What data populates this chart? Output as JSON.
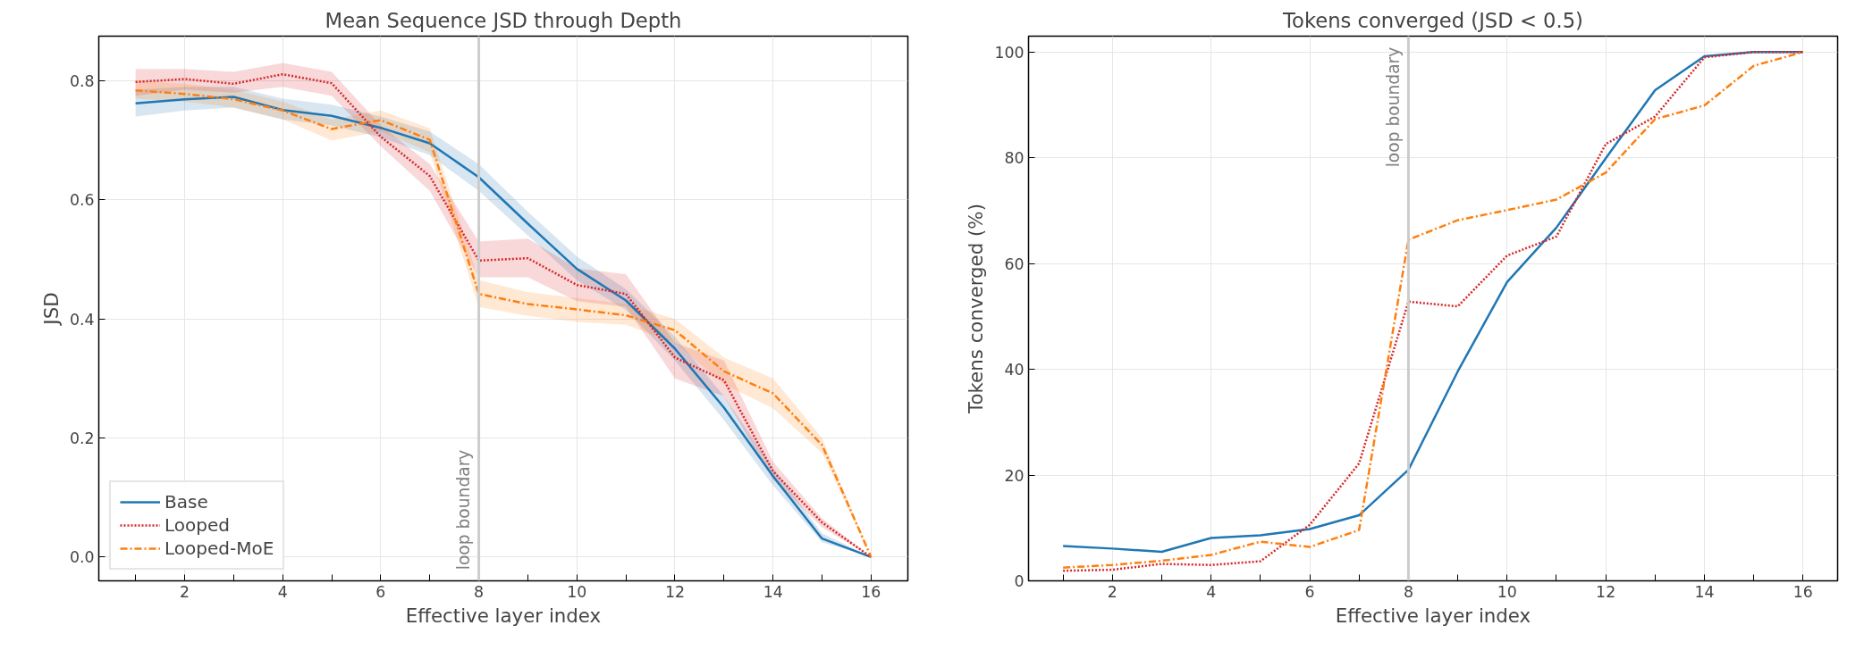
{
  "chart_data": [
    {
      "type": "line",
      "title": "Mean Sequence JSD through Depth",
      "xlabel": "Effective layer index",
      "ylabel": "JSD",
      "x": [
        1,
        2,
        3,
        4,
        5,
        6,
        7,
        8,
        9,
        10,
        11,
        12,
        13,
        14,
        15,
        16
      ],
      "series": [
        {
          "name": "Base",
          "color": "#1f77b4",
          "line_style": "solid",
          "values": [
            0.762,
            0.769,
            0.773,
            0.751,
            0.741,
            0.721,
            0.695,
            0.638,
            0.56,
            0.484,
            0.431,
            0.35,
            0.251,
            0.136,
            0.031,
            0.0
          ],
          "lower": [
            0.74,
            0.75,
            0.755,
            0.735,
            0.725,
            0.705,
            0.675,
            0.615,
            0.54,
            0.465,
            0.415,
            0.33,
            0.23,
            0.12,
            0.025,
            0.0
          ],
          "upper": [
            0.785,
            0.79,
            0.79,
            0.77,
            0.76,
            0.74,
            0.715,
            0.66,
            0.58,
            0.505,
            0.45,
            0.37,
            0.27,
            0.15,
            0.04,
            0.0
          ]
        },
        {
          "name": "Looped",
          "color": "#d62728",
          "line_style": "dotted",
          "values": [
            0.798,
            0.803,
            0.795,
            0.811,
            0.796,
            0.706,
            0.64,
            0.498,
            0.502,
            0.457,
            0.442,
            0.335,
            0.297,
            0.144,
            0.058,
            0.0
          ],
          "lower": [
            0.775,
            0.785,
            0.78,
            0.79,
            0.775,
            0.69,
            0.615,
            0.47,
            0.47,
            0.43,
            0.42,
            0.3,
            0.27,
            0.13,
            0.05,
            0.0
          ],
          "upper": [
            0.82,
            0.82,
            0.815,
            0.83,
            0.815,
            0.725,
            0.66,
            0.53,
            0.535,
            0.485,
            0.475,
            0.36,
            0.33,
            0.16,
            0.065,
            0.0
          ]
        },
        {
          "name": "Looped-MoE",
          "color": "#ff7f0e",
          "line_style": "dashdot",
          "values": [
            0.784,
            0.778,
            0.769,
            0.75,
            0.719,
            0.734,
            0.701,
            0.442,
            0.425,
            0.416,
            0.406,
            0.381,
            0.312,
            0.275,
            0.188,
            0.0
          ],
          "lower": [
            0.77,
            0.765,
            0.755,
            0.735,
            0.7,
            0.715,
            0.68,
            0.42,
            0.405,
            0.395,
            0.39,
            0.36,
            0.29,
            0.25,
            0.175,
            0.0
          ],
          "upper": [
            0.8,
            0.795,
            0.785,
            0.765,
            0.735,
            0.75,
            0.72,
            0.465,
            0.445,
            0.435,
            0.425,
            0.4,
            0.335,
            0.3,
            0.2,
            0.0
          ]
        }
      ],
      "xlim": [
        0.25,
        16.75
      ],
      "ylim": [
        -0.04,
        0.875
      ],
      "xticks": [
        {
          "value": 1,
          "label": null
        },
        2,
        {
          "value": 3,
          "label": null
        },
        4,
        {
          "value": 5,
          "label": null
        },
        6,
        {
          "value": 7,
          "label": null
        },
        8,
        {
          "value": 9,
          "label": null
        },
        10,
        {
          "value": 11,
          "label": null
        },
        12,
        {
          "value": 13,
          "label": null
        },
        14,
        {
          "value": 15,
          "label": null
        },
        16
      ],
      "yticks": [
        {
          "value": 0.0,
          "label": "0.0"
        },
        0.2,
        0.4,
        0.6,
        0.8
      ],
      "ref_lines": [
        {
          "axis": "x",
          "value": 8,
          "label": "loop boundary",
          "color": "#cccccc"
        }
      ],
      "grid": true,
      "legend": "bottom left"
    },
    {
      "type": "line",
      "title": "Tokens converged (JSD < 0.5)",
      "xlabel": "Effective layer index",
      "ylabel": "Tokens converged (%)",
      "x": [
        1,
        2,
        3,
        4,
        5,
        6,
        7,
        8,
        9,
        10,
        11,
        12,
        13,
        14,
        15,
        16
      ],
      "series": [
        {
          "color": "#1f77b4",
          "line_style": "solid",
          "values": [
            6.6,
            6.1,
            5.5,
            8.1,
            8.6,
            9.8,
            12.4,
            21.0,
            39.6,
            56.5,
            66.8,
            79.9,
            92.8,
            99.2,
            100,
            100
          ]
        },
        {
          "color": "#d62728",
          "line_style": "dotted",
          "values": [
            1.9,
            2.1,
            3.2,
            3.0,
            3.7,
            10.6,
            22.2,
            52.8,
            51.9,
            61.5,
            65.1,
            82.6,
            87.8,
            99.0,
            100,
            100
          ]
        },
        {
          "color": "#ff7f0e",
          "line_style": "dashdot",
          "values": [
            2.5,
            3.0,
            3.8,
            4.9,
            7.4,
            6.4,
            9.6,
            64.5,
            68.2,
            70.1,
            72.1,
            77.2,
            87.3,
            89.9,
            97.4,
            100
          ]
        }
      ],
      "xlim": [
        0.3,
        16.7
      ],
      "ylim": [
        0,
        103
      ],
      "xticks": [
        {
          "value": 1,
          "label": null
        },
        2,
        {
          "value": 3,
          "label": null
        },
        4,
        {
          "value": 5,
          "label": null
        },
        6,
        {
          "value": 7,
          "label": null
        },
        8,
        {
          "value": 9,
          "label": null
        },
        10,
        {
          "value": 11,
          "label": null
        },
        12,
        {
          "value": 13,
          "label": null
        },
        14,
        {
          "value": 15,
          "label": null
        },
        16
      ],
      "yticks": [
        0,
        20,
        40,
        60,
        80,
        100
      ],
      "ref_lines": [
        {
          "axis": "x",
          "value": 8,
          "label": "loop boundary",
          "color": "#cccccc"
        }
      ],
      "grid": true
    }
  ]
}
